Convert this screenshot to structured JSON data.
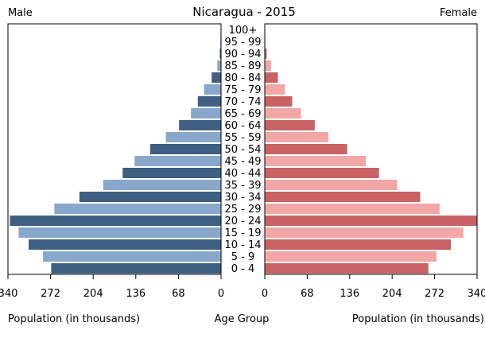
{
  "chart_data": {
    "type": "bar",
    "title": "Nicaragua - 2015",
    "left_label": "Male",
    "right_label": "Female",
    "center_axis_label": "Age Group",
    "xlabel_left": "Population (in thousands)",
    "xlabel_right": "Population (in thousands)",
    "xlim": [
      0,
      340
    ],
    "ticks": [
      0,
      68,
      136,
      204,
      272,
      340
    ],
    "tick_labels_left": [
      "340",
      "272",
      "204",
      "136",
      "68",
      "0"
    ],
    "tick_labels_right": [
      "0",
      "68",
      "136",
      "204",
      "272",
      "340"
    ],
    "categories": [
      "0 - 4",
      "5 - 9",
      "10 - 14",
      "15 - 19",
      "20 - 24",
      "25 - 29",
      "30 - 34",
      "35 - 39",
      "40 - 44",
      "45 - 49",
      "50 - 54",
      "55 - 59",
      "60 - 64",
      "65 - 69",
      "70 - 74",
      "75 - 79",
      "80 - 84",
      "85 - 89",
      "90 - 94",
      "95 - 99",
      "100+"
    ],
    "series": [
      {
        "name": "Male",
        "values": [
          271,
          284,
          307,
          323,
          337,
          266,
          226,
          188,
          157,
          138,
          113,
          88,
          67,
          48,
          37,
          27,
          15,
          6,
          2,
          1,
          0.3
        ]
      },
      {
        "name": "Female",
        "values": [
          262,
          275,
          298,
          318,
          340,
          280,
          249,
          212,
          183,
          162,
          132,
          102,
          80,
          58,
          44,
          32,
          21,
          10,
          3,
          1,
          0.4
        ]
      }
    ],
    "colors": {
      "male_dark": "#3f5f82",
      "male_light": "#87a8cb",
      "female_dark": "#c86264",
      "female_light": "#f2a6a5"
    }
  }
}
